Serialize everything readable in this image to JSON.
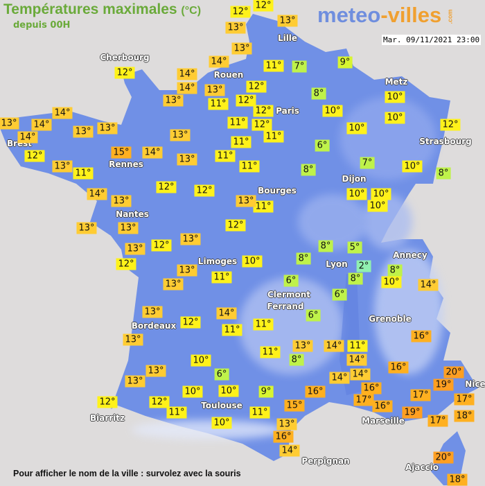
{
  "header": {
    "title": "Températures maximales",
    "unit": "(°C)",
    "subtitle": "depuis 00H"
  },
  "logo": {
    "part1": "meteo",
    "part2": "-villes",
    "part3": ".com"
  },
  "timestamp": "Mar. 09/11/2021 23:00",
  "footer": "Pour afficher le nom de la ville : survolez avec la souris",
  "colors": {
    "land": "#7090e6",
    "sea": "#dedcdc",
    "title": "#6aaa3a",
    "cold": "#90f0b0",
    "cool": "#bff24a",
    "mild": "#fff21a",
    "warm": "#ffcc33",
    "hot": "#ffb020",
    "hotter": "#ff9f22"
  },
  "cities": [
    "Lille",
    "Cherbourg",
    "Rouen",
    "Paris",
    "Metz",
    "Strasbourg",
    "Brest",
    "Rennes",
    "Dijon",
    "Bourges",
    "Nantes",
    "Limoges",
    "Annecy",
    "Lyon",
    "Clermont",
    "Ferrand",
    "Grenoble",
    "Bordeaux",
    "Toulouse",
    "Biarritz",
    "Marseille",
    "Nice",
    "Perpignan",
    "Ajaccio"
  ],
  "markers": [
    "12°",
    "13°",
    "13°",
    "14°",
    "14°",
    "14°",
    "12°",
    "13°",
    "11°",
    "13°",
    "14°",
    "13°",
    "14°",
    "14°",
    "13°",
    "13°",
    "12°",
    "13°",
    "15°",
    "14°",
    "13°",
    "11°",
    "13°",
    "11°",
    "12°",
    "12°",
    "14°",
    "13°",
    "13°",
    "13°",
    "13°",
    "12°",
    "13°",
    "11°",
    "7°",
    "9°",
    "12°",
    "8°",
    "12°",
    "12°",
    "10°",
    "11°",
    "12°",
    "11°",
    "11°",
    "10°",
    "10°",
    "10°",
    "12°",
    "6°",
    "11°",
    "8°",
    "7°",
    "10°",
    "8°",
    "11°",
    "13°",
    "10°",
    "10°",
    "10°",
    "12°",
    "13°",
    "12°",
    "12°",
    "13°",
    "13°",
    "11°",
    "13°",
    "12°",
    "13°",
    "14°",
    "11°",
    "10°",
    "6°",
    "13°",
    "13°",
    "10°",
    "10°",
    "12°",
    "12°",
    "11°",
    "10°",
    "10°",
    "8°",
    "8°",
    "5°",
    "2°",
    "8°",
    "8°",
    "10°",
    "14°",
    "6°",
    "6°",
    "6°",
    "11°",
    "16°",
    "13°",
    "14°",
    "11°",
    "11°",
    "8°",
    "14°",
    "16°",
    "14°",
    "14°",
    "20°",
    "19°",
    "16°",
    "16°",
    "9°",
    "17°",
    "16°",
    "17°",
    "17°",
    "15°",
    "11°",
    "19°",
    "17°",
    "18°",
    "13°",
    "16°",
    "14°",
    "20°",
    "18°"
  ]
}
